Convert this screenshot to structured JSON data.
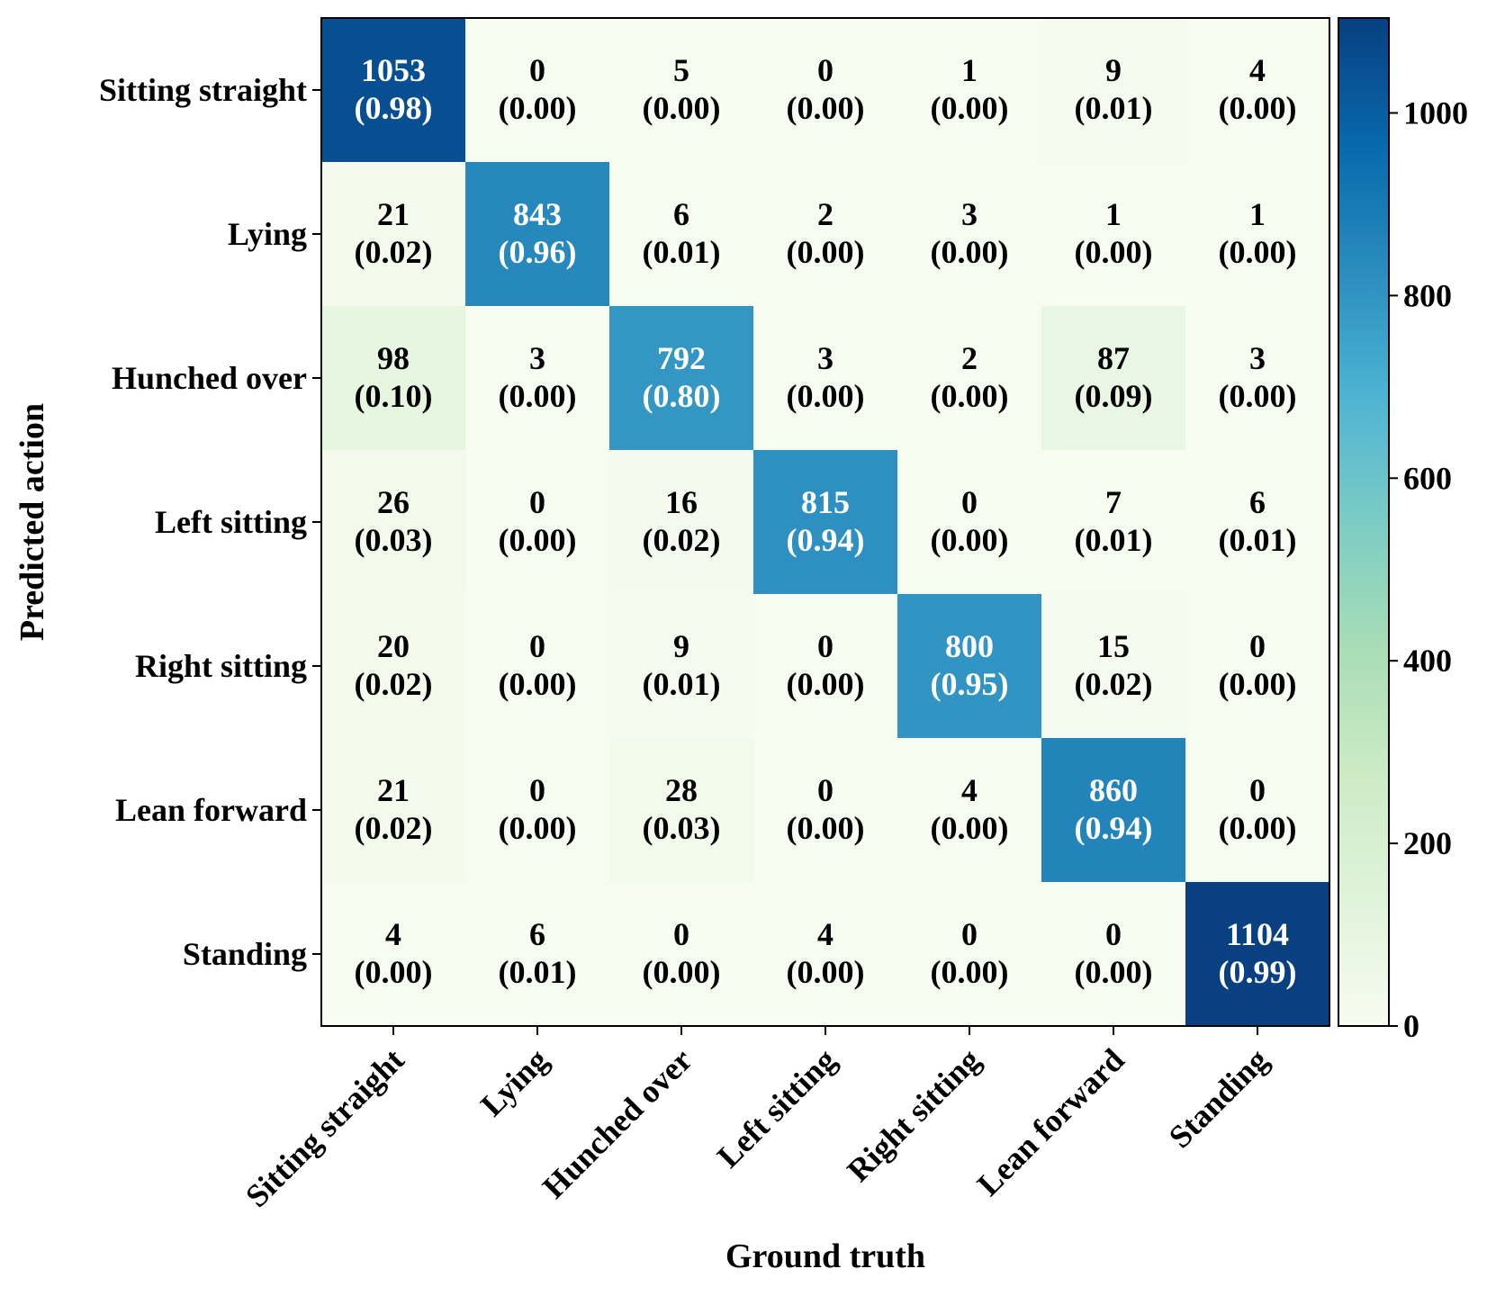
{
  "chart_data": {
    "type": "heatmap",
    "title": "",
    "xlabel": "Ground truth",
    "ylabel": "Predicted action",
    "x_categories": [
      "Sitting straight",
      "Lying",
      "Hunched over",
      "Left sitting",
      "Right sitting",
      "Lean forward",
      "Standing"
    ],
    "y_categories": [
      "Sitting straight",
      "Lying",
      "Hunched over",
      "Left sitting",
      "Right sitting",
      "Lean forward",
      "Standing"
    ],
    "values": [
      [
        1053,
        0,
        5,
        0,
        1,
        9,
        4
      ],
      [
        21,
        843,
        6,
        2,
        3,
        1,
        1
      ],
      [
        98,
        3,
        792,
        3,
        2,
        87,
        3
      ],
      [
        26,
        0,
        16,
        815,
        0,
        7,
        6
      ],
      [
        20,
        0,
        9,
        0,
        800,
        15,
        0
      ],
      [
        21,
        0,
        28,
        0,
        4,
        860,
        0
      ],
      [
        4,
        6,
        0,
        4,
        0,
        0,
        1104
      ]
    ],
    "ratios": [
      [
        "(0.98)",
        "(0.00)",
        "(0.00)",
        "(0.00)",
        "(0.00)",
        "(0.01)",
        "(0.00)"
      ],
      [
        "(0.02)",
        "(0.96)",
        "(0.01)",
        "(0.00)",
        "(0.00)",
        "(0.00)",
        "(0.00)"
      ],
      [
        "(0.10)",
        "(0.00)",
        "(0.80)",
        "(0.00)",
        "(0.00)",
        "(0.09)",
        "(0.00)"
      ],
      [
        "(0.03)",
        "(0.00)",
        "(0.02)",
        "(0.94)",
        "(0.00)",
        "(0.01)",
        "(0.01)"
      ],
      [
        "(0.02)",
        "(0.00)",
        "(0.01)",
        "(0.00)",
        "(0.95)",
        "(0.02)",
        "(0.00)"
      ],
      [
        "(0.02)",
        "(0.00)",
        "(0.03)",
        "(0.00)",
        "(0.00)",
        "(0.94)",
        "(0.00)"
      ],
      [
        "(0.00)",
        "(0.01)",
        "(0.00)",
        "(0.00)",
        "(0.00)",
        "(0.00)",
        "(0.99)"
      ]
    ],
    "colorbar": {
      "colormap": "GnBu",
      "vmin": 0,
      "vmax": 1104,
      "ticks": [
        0,
        200,
        400,
        600,
        800,
        1000
      ]
    },
    "colors": {
      "text_dark": "#000000",
      "text_light": "#ffffff"
    },
    "grid": false,
    "legend": "colorbar-right"
  }
}
